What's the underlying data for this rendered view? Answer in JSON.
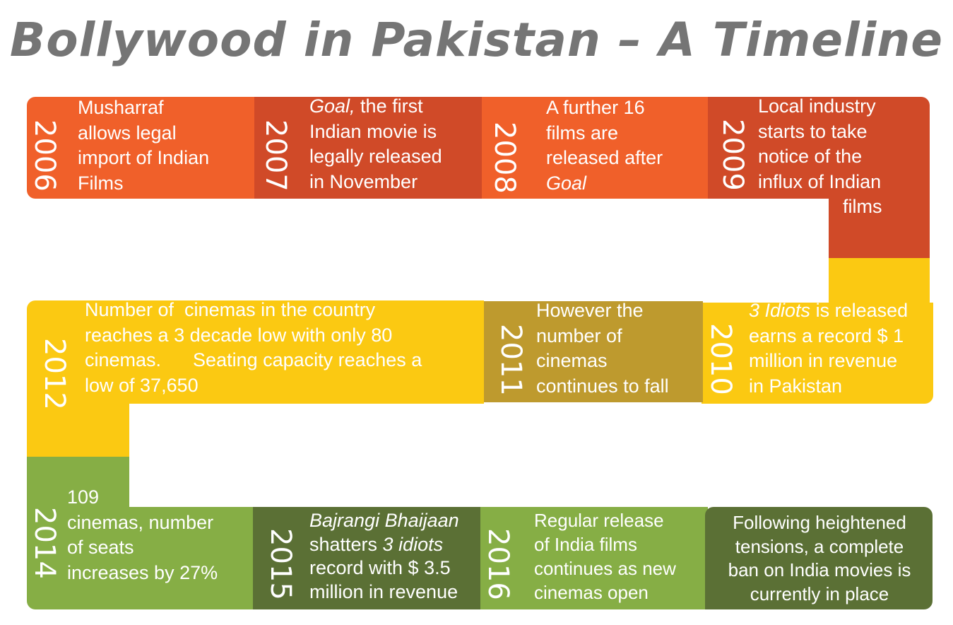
{
  "title": "Bollywood in Pakistan – A Timeline",
  "colors": {
    "orange": "#F0602A",
    "orange_dark": "#D04A28",
    "yellow": "#FBC912",
    "olive": "#BE9A2E",
    "green": "#86AE45",
    "green_dark": "#5B7035"
  },
  "events": [
    {
      "year": "2006",
      "lines": [
        "Musharraf",
        "allows legal",
        "import of Indian",
        "Films"
      ]
    },
    {
      "year": "2007",
      "lines": [
        "Goal,",
        " the first",
        "Indian movie is",
        "legally released",
        "in November"
      ]
    },
    {
      "year": "2008",
      "lines": [
        "A further 16",
        "films are",
        "released after",
        "Goal"
      ]
    },
    {
      "year": "2009",
      "lines": [
        "Local industry",
        "starts to take",
        "notice of the",
        "influx of Indian",
        "films"
      ]
    },
    {
      "year": "2010",
      "lines": [
        "3 Idiots",
        " is released",
        "earns a record $ 1",
        "million in revenue",
        "in Pakistan"
      ]
    },
    {
      "year": "2011",
      "lines": [
        "However the",
        "number of",
        "cinemas",
        "continues to fall"
      ]
    },
    {
      "year": "2012",
      "lines": [
        "Number of  cinemas in the country",
        "reaches a 3 decade low with only 80",
        "cinemas.      Seating capacity reaches a",
        "low of 37,650"
      ]
    },
    {
      "year": "2014",
      "lines": [
        "109",
        "cinemas, number",
        "of seats",
        "increases by 27%"
      ]
    },
    {
      "year": "2015",
      "lines": [
        "Bajrangi Bhaijaan",
        "shatters ",
        "3 idiots",
        "record with $ 3.5",
        "million in revenue"
      ]
    },
    {
      "year": "2016",
      "lines": [
        "Regular release",
        "of India films",
        "continues as new",
        "cinemas open"
      ]
    },
    {
      "year": "",
      "lines": [
        "Following heightened",
        "tensions, a complete",
        "ban on India movies is",
        "currently in place"
      ]
    }
  ]
}
